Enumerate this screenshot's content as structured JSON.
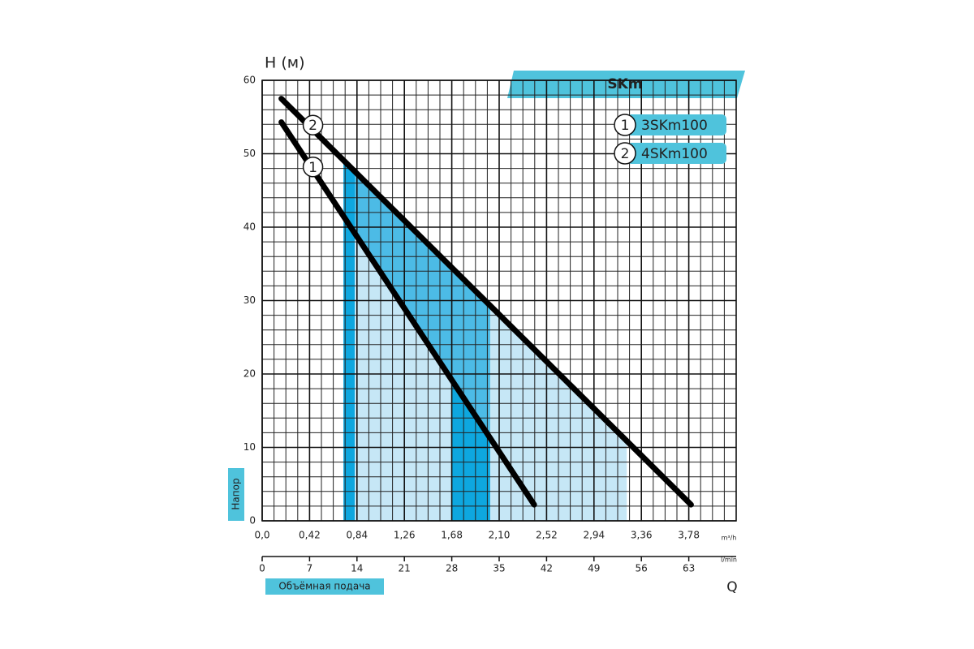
{
  "chart_data": {
    "type": "line",
    "title": "SKm",
    "y_label": "H (м)",
    "y_side_label": "Напор",
    "x_label": "Объёмная подача",
    "x_unit": "m³/h",
    "x2_unit": "l/min",
    "x2_label": "Q",
    "xlim": [
      0,
      4.2
    ],
    "xticks": [
      {
        "value": 0,
        "label": "0,0"
      },
      {
        "value": 0.42,
        "label": "0,42"
      },
      {
        "value": 0.84,
        "label": "0,84"
      },
      {
        "value": 1.26,
        "label": "1,26"
      },
      {
        "value": 1.68,
        "label": "1,68"
      },
      {
        "value": 2.1,
        "label": "2,10"
      },
      {
        "value": 2.52,
        "label": "2,52"
      },
      {
        "value": 2.94,
        "label": "2,94"
      },
      {
        "value": 3.36,
        "label": "3,36"
      },
      {
        "value": 3.78,
        "label": "3,78"
      }
    ],
    "x2lim": [
      0,
      70
    ],
    "x2ticks": [
      0,
      7,
      14,
      21,
      28,
      35,
      42,
      49,
      56,
      63
    ],
    "ylim": [
      0,
      60
    ],
    "yticks": [
      0,
      10,
      20,
      30,
      40,
      50,
      60
    ],
    "grid": true,
    "series": [
      {
        "name": "3SKm100",
        "marker": "1",
        "color": "#000000",
        "x": [
          0.17,
          2.41
        ],
        "values": [
          54.3,
          2.2
        ],
        "label_at": [
          0.45,
          48.2
        ]
      },
      {
        "name": "4SKm100",
        "marker": "2",
        "color": "#000000",
        "x": [
          0.17,
          3.8
        ],
        "values": [
          57.5,
          2.2
        ],
        "label_at": [
          0.45,
          53.9
        ]
      }
    ],
    "shaded": [
      {
        "xlim": [
          0.72,
          3.23
        ],
        "top": 1,
        "bottom": null,
        "color": "#c6e7f6"
      },
      {
        "xlim": [
          0.82,
          2.02
        ],
        "top": 1,
        "bottom": 0,
        "color": "#4cbbe6"
      },
      {
        "xlim": [
          0.72,
          0.82
        ],
        "top": 1,
        "bottom": null,
        "color": "#0ea7df"
      },
      {
        "xlim": [
          1.68,
          2.02
        ],
        "top": 0,
        "bottom": null,
        "color": "#0ea7df"
      }
    ]
  }
}
